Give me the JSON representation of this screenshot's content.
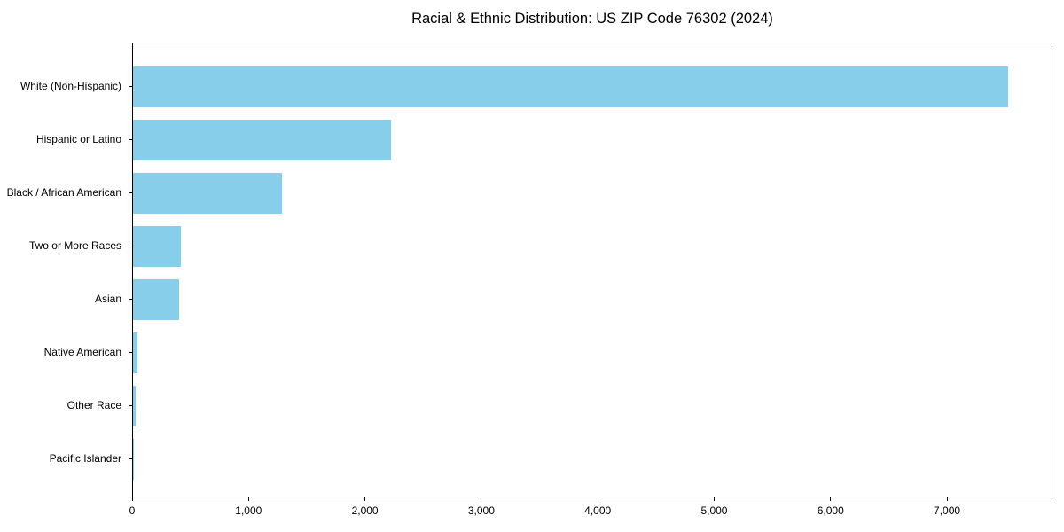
{
  "chart_data": {
    "type": "bar",
    "orientation": "horizontal",
    "title": "Racial & Ethnic Distribution: US ZIP Code 76302 (2024)",
    "categories": [
      "White (Non-Hispanic)",
      "Hispanic or Latino",
      "Black / African American",
      "Two or More Races",
      "Asian",
      "Native American",
      "Other Race",
      "Pacific Islander"
    ],
    "values": [
      7530,
      2220,
      1280,
      410,
      400,
      38,
      22,
      10
    ],
    "xlabel": "",
    "ylabel": "",
    "xlim": [
      0,
      7906
    ],
    "x_ticks": [
      {
        "value": 0,
        "label": "0"
      },
      {
        "value": 1000,
        "label": "1,000"
      },
      {
        "value": 2000,
        "label": "2,000"
      },
      {
        "value": 3000,
        "label": "3,000"
      },
      {
        "value": 4000,
        "label": "4,000"
      },
      {
        "value": 5000,
        "label": "5,000"
      },
      {
        "value": 6000,
        "label": "6,000"
      },
      {
        "value": 7000,
        "label": "7,000"
      }
    ],
    "grid": false,
    "legend": null,
    "bar_color": "#87CEEB",
    "axis_color": "#000000",
    "text_color": "#000000",
    "background_color": "#ffffff"
  }
}
